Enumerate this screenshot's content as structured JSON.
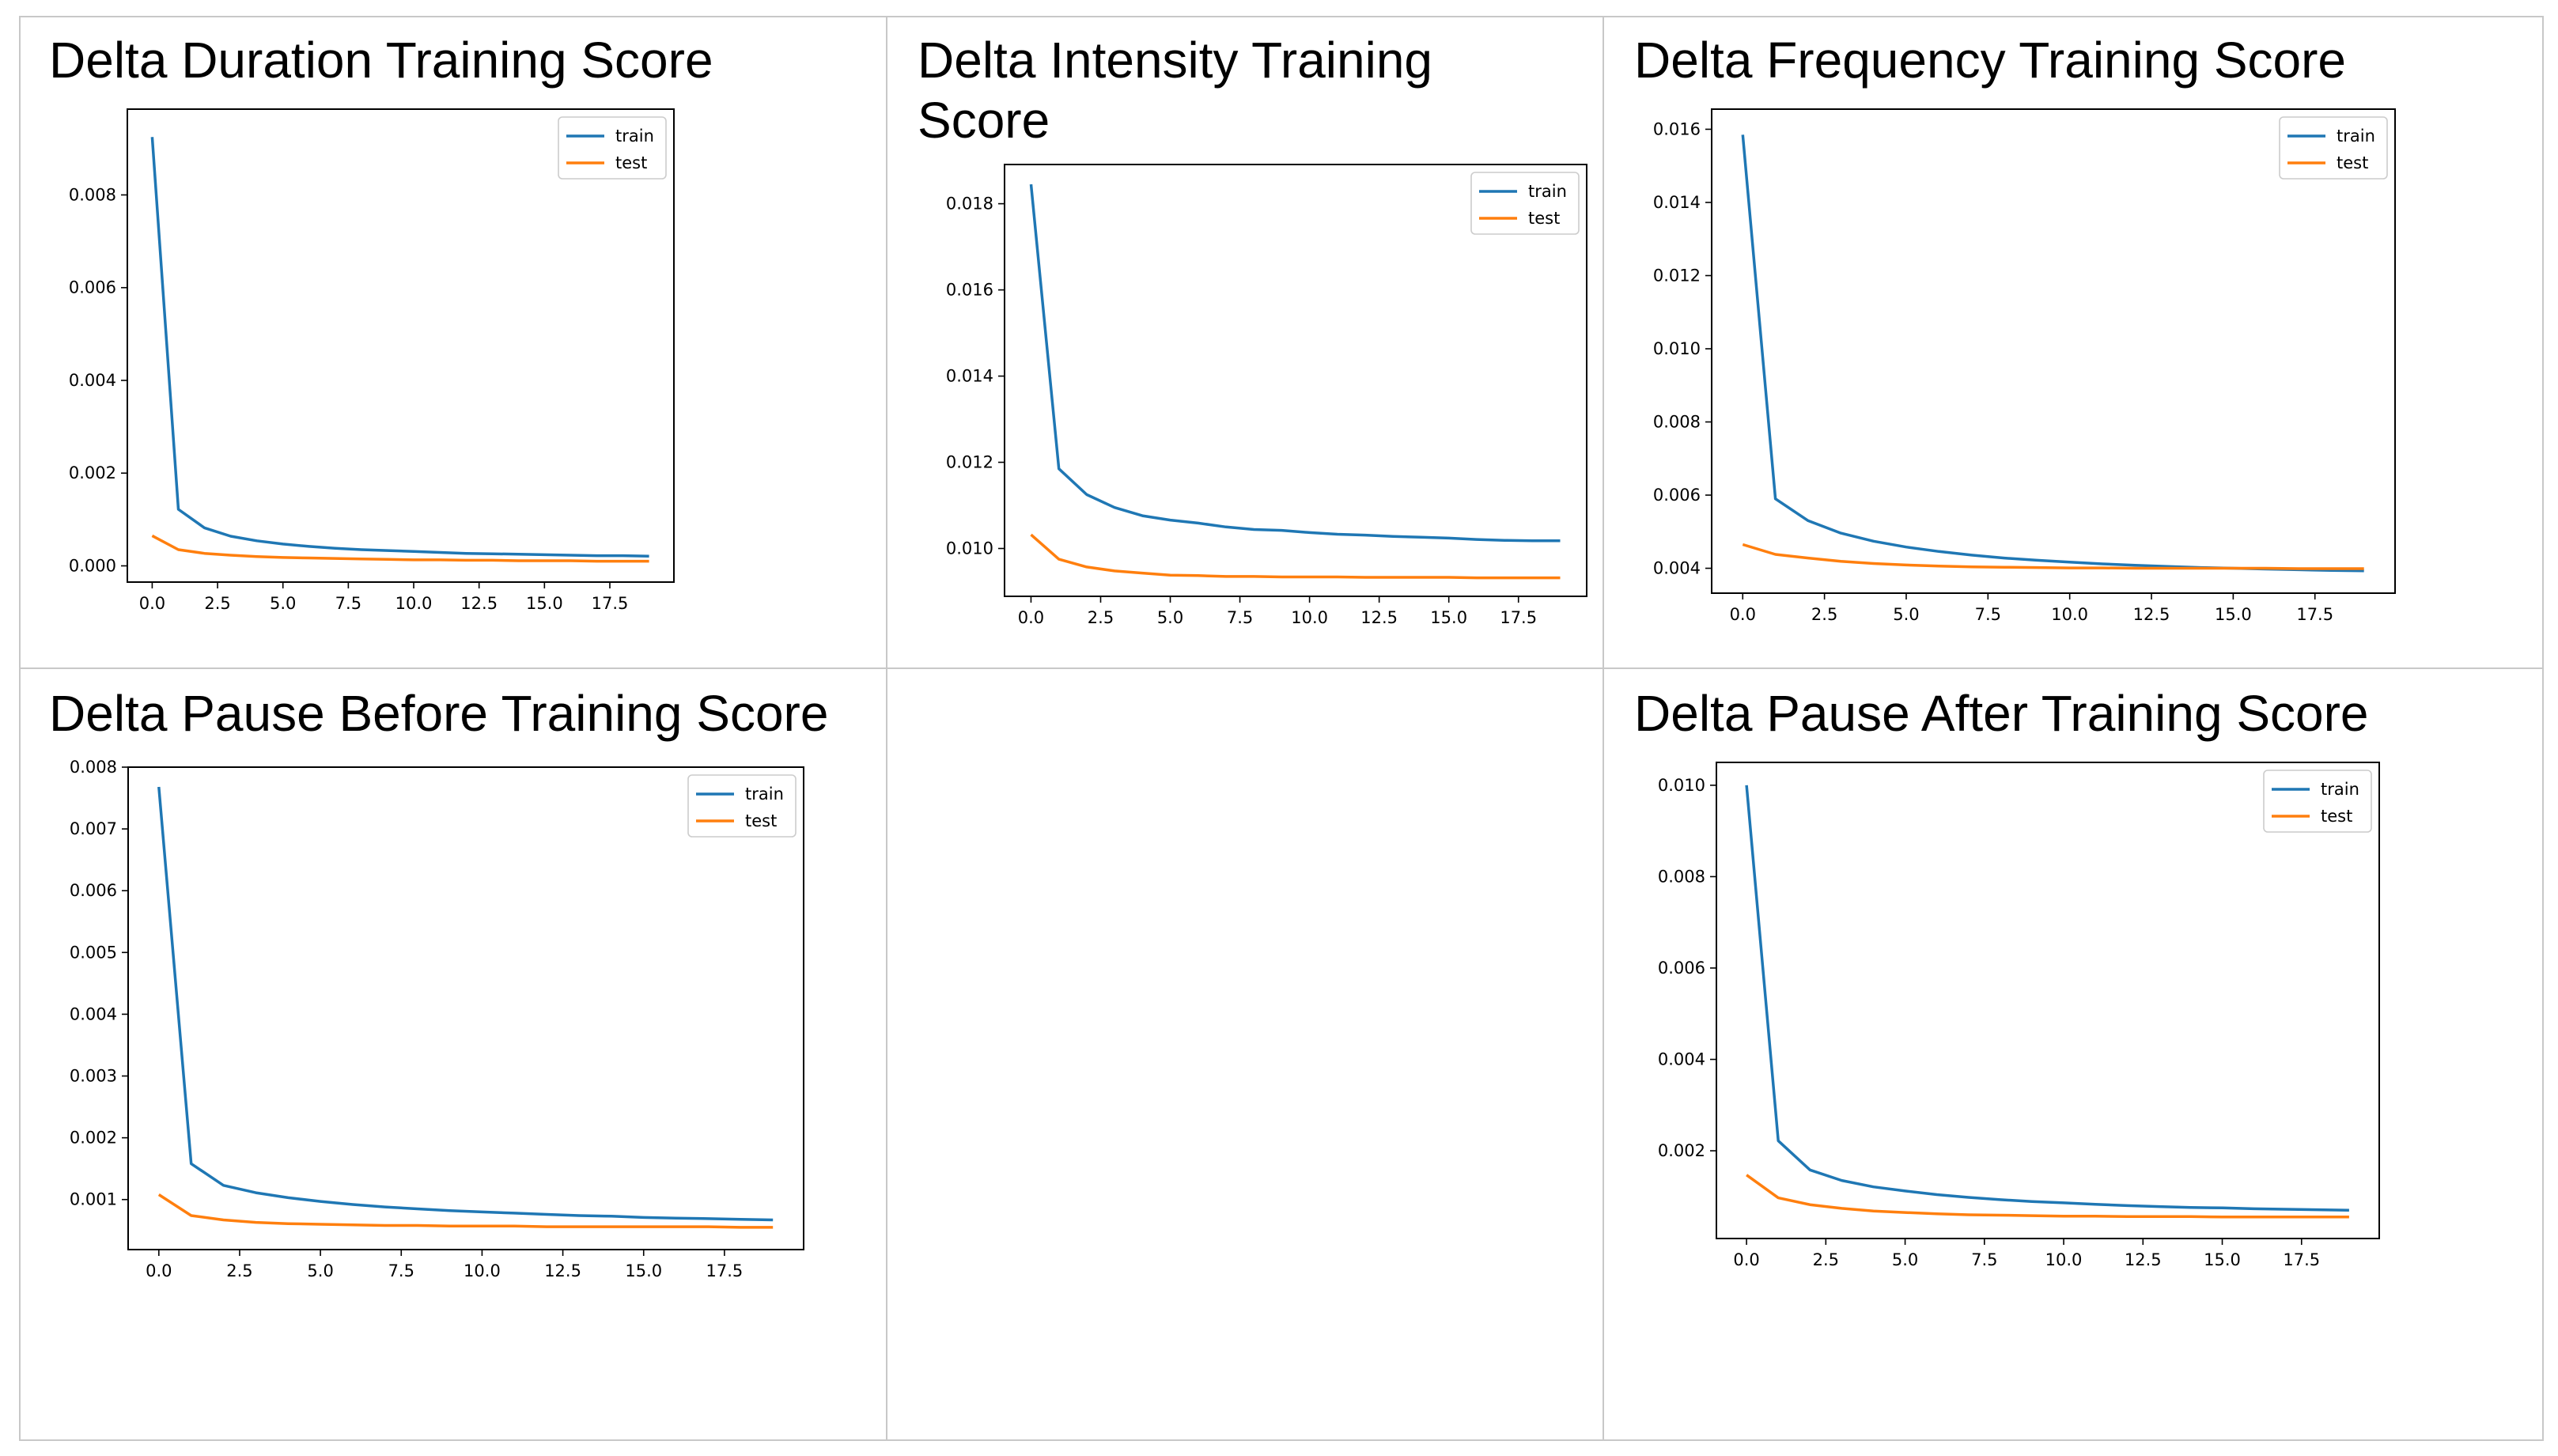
{
  "colors": {
    "train": "#1f77b4",
    "test": "#ff7f0e",
    "grid_line": "#c8c8c8",
    "axis": "#000000"
  },
  "chart_data": [
    {
      "id": "duration",
      "type": "line",
      "title": "Delta Duration Training Score",
      "xlabel": "",
      "ylabel": "",
      "xlim": [
        -0.95,
        19.95
      ],
      "ylim": [
        -0.00035,
        0.00985
      ],
      "xticks": [
        "0.0",
        "2.5",
        "5.0",
        "7.5",
        "10.0",
        "12.5",
        "15.0",
        "17.5"
      ],
      "xtick_values": [
        0,
        2.5,
        5,
        7.5,
        10,
        12.5,
        15,
        17.5
      ],
      "yticks": [
        "0.000",
        "0.002",
        "0.004",
        "0.006",
        "0.008"
      ],
      "ytick_values": [
        0,
        0.002,
        0.004,
        0.006,
        0.008
      ],
      "legend": "top-right",
      "x": [
        0,
        1,
        2,
        3,
        4,
        5,
        6,
        7,
        8,
        9,
        10,
        11,
        12,
        13,
        14,
        15,
        16,
        17,
        18,
        19
      ],
      "series": [
        {
          "name": "train",
          "values": [
            0.00925,
            0.00122,
            0.00082,
            0.00064,
            0.00054,
            0.00047,
            0.00042,
            0.00038,
            0.00035,
            0.00033,
            0.00031,
            0.00029,
            0.00027,
            0.00026,
            0.00025,
            0.00024,
            0.00023,
            0.00022,
            0.00022,
            0.00021
          ]
        },
        {
          "name": "test",
          "values": [
            0.00065,
            0.00035,
            0.00027,
            0.00023,
            0.0002,
            0.00018,
            0.00017,
            0.00016,
            0.00015,
            0.00014,
            0.00013,
            0.00013,
            0.00012,
            0.00012,
            0.00011,
            0.00011,
            0.00011,
            0.0001,
            0.0001,
            0.0001
          ]
        }
      ]
    },
    {
      "id": "intensity",
      "type": "line",
      "title": "Delta Intensity Training Score",
      "xlabel": "",
      "ylabel": "",
      "xlim": [
        -0.95,
        19.95
      ],
      "ylim": [
        0.00889,
        0.01891
      ],
      "xticks": [
        "0.0",
        "2.5",
        "5.0",
        "7.5",
        "10.0",
        "12.5",
        "15.0",
        "17.5"
      ],
      "xtick_values": [
        0,
        2.5,
        5,
        7.5,
        10,
        12.5,
        15,
        17.5
      ],
      "yticks": [
        "0.010",
        "0.012",
        "0.014",
        "0.016",
        "0.018"
      ],
      "ytick_values": [
        0.01,
        0.012,
        0.014,
        0.016,
        0.018
      ],
      "legend": "top-right",
      "x": [
        0,
        1,
        2,
        3,
        4,
        5,
        6,
        7,
        8,
        9,
        10,
        11,
        12,
        13,
        14,
        15,
        16,
        17,
        18,
        19
      ],
      "series": [
        {
          "name": "train",
          "values": [
            0.01845,
            0.01185,
            0.01125,
            0.01095,
            0.01076,
            0.01066,
            0.01059,
            0.0105,
            0.01044,
            0.01042,
            0.01037,
            0.01033,
            0.01031,
            0.01028,
            0.01026,
            0.01024,
            0.01021,
            0.01019,
            0.01018,
            0.01018
          ]
        },
        {
          "name": "test",
          "values": [
            0.01032,
            0.00975,
            0.00957,
            0.00948,
            0.00943,
            0.00938,
            0.00937,
            0.00935,
            0.00935,
            0.00934,
            0.00934,
            0.00934,
            0.00933,
            0.00933,
            0.00933,
            0.00933,
            0.00932,
            0.00932,
            0.00932,
            0.00932
          ]
        }
      ]
    },
    {
      "id": "frequency",
      "type": "line",
      "title": "Delta Frequency Training Score",
      "xlabel": "",
      "ylabel": "",
      "xlim": [
        -0.95,
        19.95
      ],
      "ylim": [
        0.00332,
        0.01655
      ],
      "xticks": [
        "0.0",
        "2.5",
        "5.0",
        "7.5",
        "10.0",
        "12.5",
        "15.0",
        "17.5"
      ],
      "xtick_values": [
        0,
        2.5,
        5,
        7.5,
        10,
        12.5,
        15,
        17.5
      ],
      "yticks": [
        "0.004",
        "0.006",
        "0.008",
        "0.010",
        "0.012",
        "0.014",
        "0.016"
      ],
      "ytick_values": [
        0.004,
        0.006,
        0.008,
        0.01,
        0.012,
        0.014,
        0.016
      ],
      "legend": "top-right",
      "x": [
        0,
        1,
        2,
        3,
        4,
        5,
        6,
        7,
        8,
        9,
        10,
        11,
        12,
        13,
        14,
        15,
        16,
        17,
        18,
        19
      ],
      "series": [
        {
          "name": "train",
          "values": [
            0.01585,
            0.0059,
            0.0053,
            0.00496,
            0.00474,
            0.00458,
            0.00446,
            0.00436,
            0.00428,
            0.00422,
            0.00417,
            0.00412,
            0.00408,
            0.00405,
            0.00402,
            0.004,
            0.00398,
            0.00396,
            0.00394,
            0.00393
          ]
        },
        {
          "name": "test",
          "values": [
            0.00465,
            0.00438,
            0.00428,
            0.00419,
            0.00413,
            0.00409,
            0.00406,
            0.00404,
            0.00403,
            0.00402,
            0.00401,
            0.00401,
            0.004,
            0.004,
            0.004,
            0.004,
            0.004,
            0.00399,
            0.00399,
            0.00399
          ]
        }
      ]
    },
    {
      "id": "pause_before",
      "type": "line",
      "title": "Delta Pause Before Training Score",
      "xlabel": "",
      "ylabel": "",
      "xlim": [
        -0.95,
        19.95
      ],
      "ylim": [
        0.00019,
        0.008
      ],
      "xticks": [
        "0.0",
        "2.5",
        "5.0",
        "7.5",
        "10.0",
        "12.5",
        "15.0",
        "17.5"
      ],
      "xtick_values": [
        0,
        2.5,
        5,
        7.5,
        10,
        12.5,
        15,
        17.5
      ],
      "yticks": [
        "0.001",
        "0.002",
        "0.003",
        "0.004",
        "0.005",
        "0.006",
        "0.007",
        "0.008"
      ],
      "ytick_values": [
        0.001,
        0.002,
        0.003,
        0.004,
        0.005,
        0.006,
        0.007,
        0.008
      ],
      "legend": "top-right",
      "x": [
        0,
        1,
        2,
        3,
        4,
        5,
        6,
        7,
        8,
        9,
        10,
        11,
        12,
        13,
        14,
        15,
        16,
        17,
        18,
        19
      ],
      "series": [
        {
          "name": "train",
          "values": [
            0.00768,
            0.00158,
            0.00123,
            0.00111,
            0.00103,
            0.00097,
            0.00092,
            0.00088,
            0.00085,
            0.00082,
            0.0008,
            0.00078,
            0.00076,
            0.00074,
            0.00073,
            0.00071,
            0.0007,
            0.00069,
            0.00068,
            0.00067
          ]
        },
        {
          "name": "test",
          "values": [
            0.00108,
            0.00074,
            0.00067,
            0.00063,
            0.00061,
            0.0006,
            0.00059,
            0.00058,
            0.00058,
            0.00057,
            0.00057,
            0.00057,
            0.00056,
            0.00056,
            0.00056,
            0.00056,
            0.00056,
            0.00056,
            0.00055,
            0.00055
          ]
        }
      ]
    },
    {
      "id": "pause_after",
      "type": "line",
      "title": "Delta Pause After Training Score",
      "xlabel": "",
      "ylabel": "",
      "xlim": [
        -0.95,
        19.95
      ],
      "ylim": [
        8e-05,
        0.0105
      ],
      "xticks": [
        "0.0",
        "2.5",
        "5.0",
        "7.5",
        "10.0",
        "12.5",
        "15.0",
        "17.5"
      ],
      "xtick_values": [
        0,
        2.5,
        5,
        7.5,
        10,
        12.5,
        15,
        17.5
      ],
      "yticks": [
        "0.002",
        "0.004",
        "0.006",
        "0.008",
        "0.010"
      ],
      "ytick_values": [
        0.002,
        0.004,
        0.006,
        0.008,
        0.01
      ],
      "legend": "top-right",
      "x": [
        0,
        1,
        2,
        3,
        4,
        5,
        6,
        7,
        8,
        9,
        10,
        11,
        12,
        13,
        14,
        15,
        16,
        17,
        18,
        19
      ],
      "series": [
        {
          "name": "train",
          "values": [
            0.01,
            0.00222,
            0.00158,
            0.00135,
            0.00121,
            0.00112,
            0.00104,
            0.00098,
            0.00093,
            0.00089,
            0.00086,
            0.00083,
            0.0008,
            0.00078,
            0.00076,
            0.00075,
            0.00073,
            0.00072,
            0.00071,
            0.0007
          ]
        },
        {
          "name": "test",
          "values": [
            0.00147,
            0.00097,
            0.00082,
            0.00074,
            0.00068,
            0.00065,
            0.00062,
            0.0006,
            0.00059,
            0.00058,
            0.00057,
            0.00057,
            0.00056,
            0.00056,
            0.00056,
            0.00055,
            0.00055,
            0.00055,
            0.00055,
            0.00055
          ]
        }
      ]
    }
  ]
}
